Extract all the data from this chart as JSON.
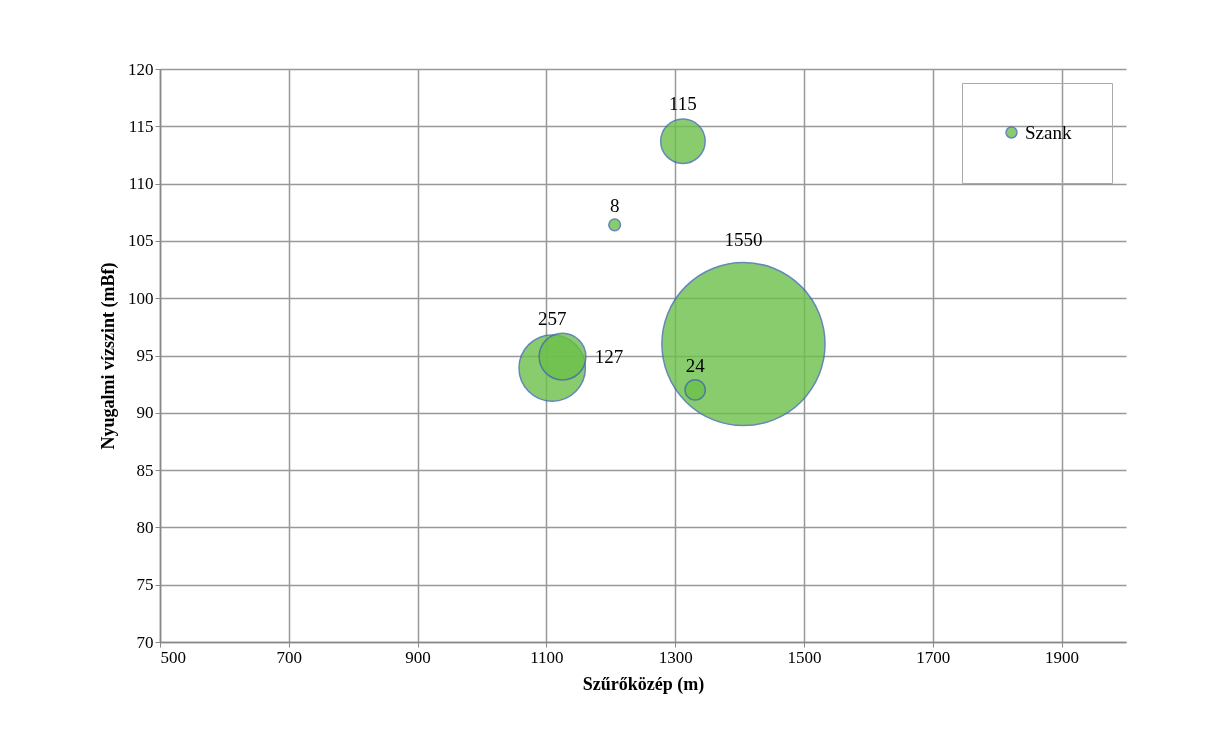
{
  "chart_data": {
    "type": "bubble",
    "xlabel": "Szűrőközép (m)",
    "ylabel": "Nyugalmi vízszint (mBf)",
    "x": [
      1312,
      1206,
      1406,
      1109,
      1125,
      1331
    ],
    "series": [
      {
        "name": "Szank",
        "color": "#6cc04a",
        "values": [
          113.7,
          106.4,
          96.0,
          93.9,
          94.9,
          92.0
        ],
        "sizes": [
          115,
          8,
          1550,
          257,
          127,
          24
        ],
        "value_labels": [
          "115",
          "8",
          "1550",
          "257",
          "127",
          "24"
        ]
      }
    ],
    "xlim": [
      500,
      2000
    ],
    "xticks": [
      500,
      700,
      900,
      1100,
      1300,
      1500,
      1700,
      1900
    ],
    "ylim": [
      70,
      120
    ],
    "yticks": [
      70,
      75,
      80,
      85,
      90,
      95,
      100,
      105,
      110,
      115,
      120
    ],
    "grid": true,
    "legend": "top right",
    "marker": "circle"
  }
}
